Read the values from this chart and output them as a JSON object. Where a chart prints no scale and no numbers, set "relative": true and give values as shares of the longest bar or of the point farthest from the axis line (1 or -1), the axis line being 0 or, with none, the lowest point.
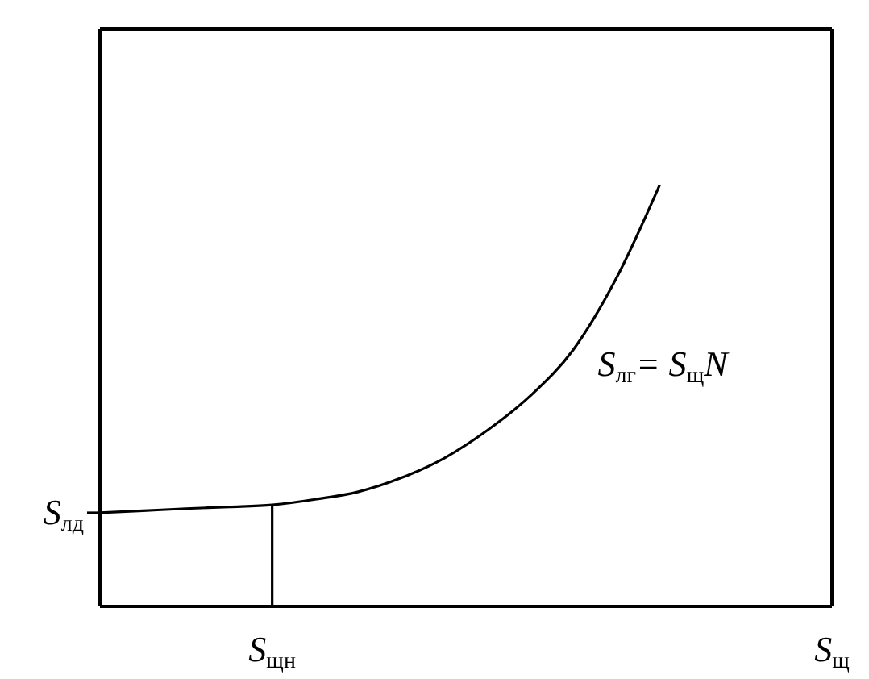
{
  "chart_data": {
    "type": "line",
    "relative": true,
    "categories": [
      null,
      null,
      null,
      null,
      "S$_{щн}$",
      null,
      null,
      null,
      null,
      null,
      null,
      null,
      null,
      null,
      null,
      null,
      null,
      "S$_{щ}$"
    ],
    "series": [
      {
        "color": "#000000",
        "values": [
          0.222,
          0.227,
          0.232,
          0.236,
          0.241,
          0.254,
          0.272,
          0.305,
          0.352,
          0.418,
          0.5,
          0.61,
          0.78,
          1,
          null,
          null,
          null,
          null
        ]
      }
    ],
    "ref_lines": [
      {
        "axis": "x",
        "value": "S$_{щн}$",
        "color": "#000000"
      }
    ],
    "annotations": [
      "S$_{лд}$",
      "S$_{лг}$= S$_{щ}$N"
    ],
    "marker": "none",
    "line_style": "solid"
  }
}
